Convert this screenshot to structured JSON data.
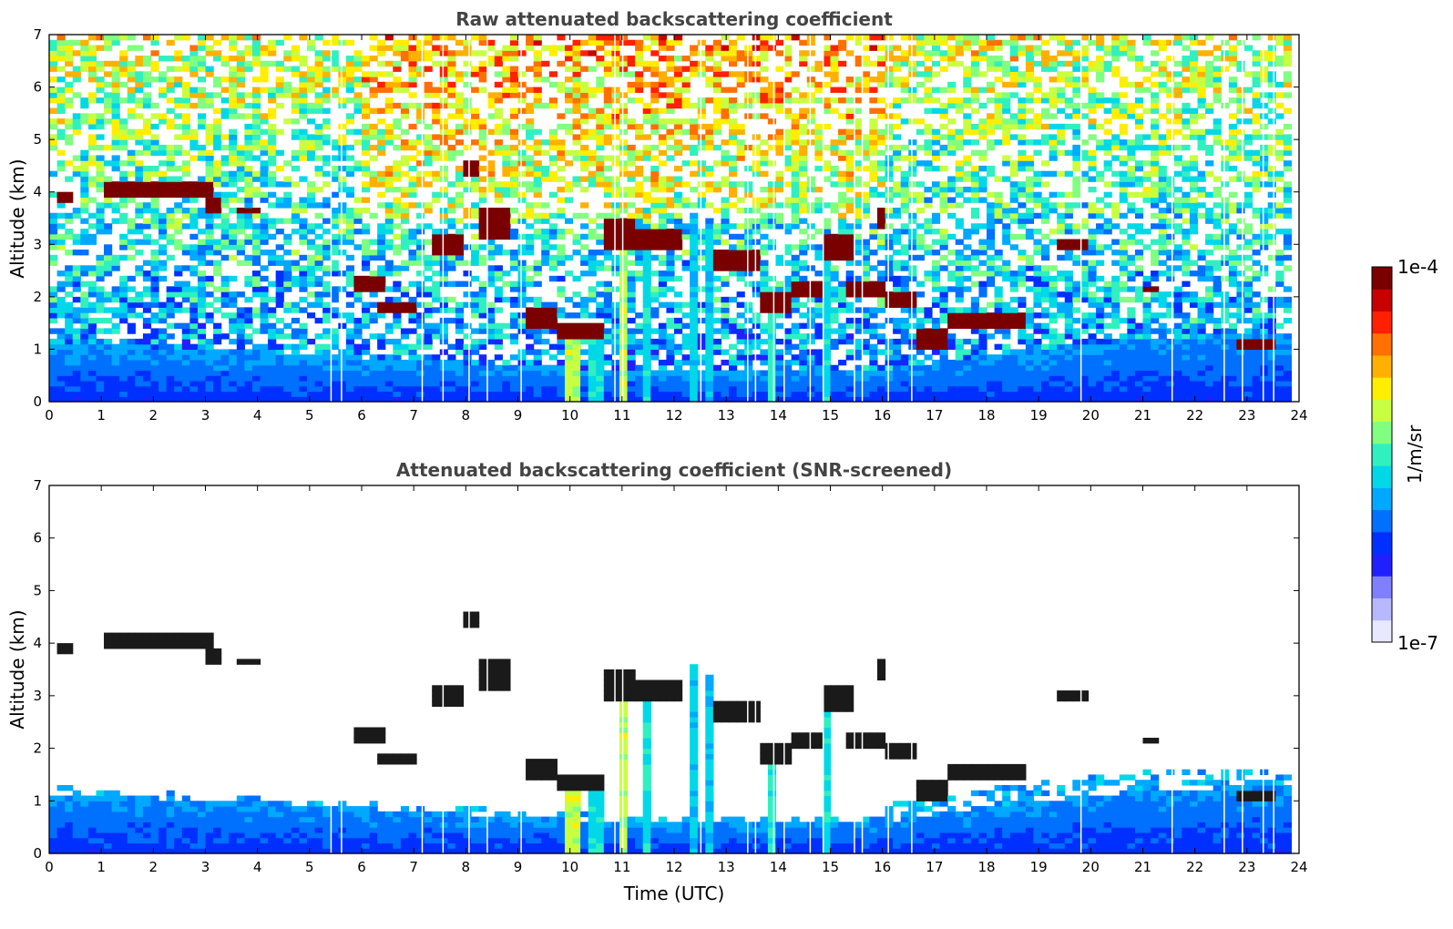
{
  "chart_data": [
    {
      "type": "heatmap",
      "title": "Raw attenuated backscattering coefficient",
      "xlabel": "",
      "ylabel": "Altitude (km)",
      "xlim": [
        0,
        24
      ],
      "ylim": [
        0,
        7
      ],
      "xticks": [
        0,
        1,
        2,
        3,
        4,
        5,
        6,
        7,
        8,
        9,
        10,
        11,
        12,
        13,
        14,
        15,
        16,
        17,
        18,
        19,
        20,
        21,
        22,
        23,
        24
      ],
      "yticks": [
        0,
        1,
        2,
        3,
        4,
        5,
        6,
        7
      ],
      "screened": false,
      "boundary_layer_top_km": [
        [
          0,
          1.15
        ],
        [
          4,
          0.95
        ],
        [
          8,
          0.75
        ],
        [
          12,
          0.55
        ],
        [
          16,
          0.6
        ],
        [
          18,
          0.9
        ],
        [
          21,
          1.2
        ],
        [
          23.8,
          1.3
        ]
      ],
      "cloud_layers": [
        {
          "t0": 0.2,
          "t1": 0.5,
          "alt": 3.9,
          "th": 0.08
        },
        {
          "t0": 1.0,
          "t1": 3.2,
          "alt": 4.05,
          "th": 0.18
        },
        {
          "t0": 3.0,
          "t1": 3.3,
          "alt": 3.75,
          "th": 0.12
        },
        {
          "t0": 3.6,
          "t1": 4.1,
          "alt": 3.65,
          "th": 0.06
        },
        {
          "t0": 5.8,
          "t1": 6.4,
          "alt": 2.3,
          "th": 0.15
        },
        {
          "t0": 6.3,
          "t1": 7.0,
          "alt": 1.8,
          "th": 0.12
        },
        {
          "t0": 7.3,
          "t1": 8.0,
          "alt": 3.0,
          "th": 0.2
        },
        {
          "t0": 8.0,
          "t1": 8.3,
          "alt": 4.4,
          "th": 0.15
        },
        {
          "t0": 8.3,
          "t1": 8.9,
          "alt": 3.4,
          "th": 0.25
        },
        {
          "t0": 9.2,
          "t1": 9.8,
          "alt": 1.6,
          "th": 0.18
        },
        {
          "t0": 9.8,
          "t1": 10.6,
          "alt": 1.3,
          "th": 0.15
        },
        {
          "t0": 10.6,
          "t1": 11.2,
          "alt": 3.2,
          "th": 0.3
        },
        {
          "t0": 11.3,
          "t1": 12.2,
          "alt": 3.1,
          "th": 0.2
        },
        {
          "t0": 12.8,
          "t1": 13.6,
          "alt": 2.7,
          "th": 0.2
        },
        {
          "t0": 13.6,
          "t1": 14.3,
          "alt": 1.9,
          "th": 0.2
        },
        {
          "t0": 14.3,
          "t1": 14.8,
          "alt": 2.1,
          "th": 0.15
        },
        {
          "t0": 14.8,
          "t1": 15.4,
          "alt": 2.95,
          "th": 0.25
        },
        {
          "t0": 15.3,
          "t1": 16.0,
          "alt": 2.1,
          "th": 0.15
        },
        {
          "t0": 15.9,
          "t1": 16.1,
          "alt": 3.5,
          "th": 0.15
        },
        {
          "t0": 16.0,
          "t1": 16.6,
          "alt": 1.95,
          "th": 0.1
        },
        {
          "t0": 16.6,
          "t1": 17.3,
          "alt": 1.2,
          "th": 0.2
        },
        {
          "t0": 17.3,
          "t1": 18.7,
          "alt": 1.55,
          "th": 0.15
        },
        {
          "t0": 19.3,
          "t1": 20.0,
          "alt": 3.0,
          "th": 0.1
        },
        {
          "t0": 21.0,
          "t1": 21.3,
          "alt": 2.15,
          "th": 0.05
        },
        {
          "t0": 22.8,
          "t1": 23.6,
          "alt": 1.05,
          "th": 0.1
        }
      ],
      "precip_columns": [
        {
          "t": 10.1,
          "w": 0.3,
          "top": 1.3,
          "level": 0.62
        },
        {
          "t": 10.5,
          "w": 0.15,
          "top": 1.3,
          "level": 0.45
        },
        {
          "t": 10.95,
          "w": 0.1,
          "top": 2.8,
          "level": 0.45
        },
        {
          "t": 11.05,
          "w": 0.12,
          "top": 3.5,
          "level": 0.62
        },
        {
          "t": 11.25,
          "w": 0.08,
          "top": 2.6,
          "level": 0.7
        },
        {
          "t": 11.45,
          "w": 0.08,
          "top": 2.9,
          "level": 0.45
        },
        {
          "t": 11.7,
          "w": 0.1,
          "top": 3.0,
          "level": 0.45
        },
        {
          "t": 12.0,
          "w": 0.1,
          "top": 3.3,
          "level": 0.45
        },
        {
          "t": 12.35,
          "w": 0.15,
          "top": 3.6,
          "level": 0.42
        },
        {
          "t": 12.65,
          "w": 0.1,
          "top": 3.4,
          "level": 0.42
        },
        {
          "t": 13.85,
          "w": 0.07,
          "top": 2.0,
          "level": 0.48
        },
        {
          "t": 14.95,
          "w": 0.07,
          "top": 2.8,
          "level": 0.45
        },
        {
          "t": 15.15,
          "w": 0.1,
          "top": 2.9,
          "level": 0.62
        }
      ],
      "data_gaps_utc": [
        5.4,
        5.6,
        7.15,
        7.55,
        8.05,
        8.4,
        9.05,
        10.85,
        11.0,
        12.5,
        13.4,
        13.55,
        13.9,
        14.1,
        14.6,
        14.85,
        15.45,
        15.6,
        16.1,
        16.55,
        19.8,
        21.55,
        22.55,
        22.9,
        23.3,
        23.5
      ]
    },
    {
      "type": "heatmap",
      "title": "Attenuated backscattering coefficient (SNR-screened)",
      "xlabel": "Time (UTC)",
      "ylabel": "Altitude (km)",
      "xlim": [
        0,
        24
      ],
      "ylim": [
        0,
        7
      ],
      "xticks": [
        0,
        1,
        2,
        3,
        4,
        5,
        6,
        7,
        8,
        9,
        10,
        11,
        12,
        13,
        14,
        15,
        16,
        17,
        18,
        19,
        20,
        21,
        22,
        23,
        24
      ],
      "yticks": [
        0,
        1,
        2,
        3,
        4,
        5,
        6,
        7
      ],
      "screened": true
    }
  ],
  "colorbar": {
    "label": "1/m/sr",
    "max_label": "1e-4",
    "min_label": "1e-7",
    "colors": [
      "#e8e8ff",
      "#b8b8ff",
      "#8080ff",
      "#2020ff",
      "#0030ff",
      "#0070ff",
      "#00a8ff",
      "#00d8e8",
      "#30f0c0",
      "#80ff80",
      "#c8ff40",
      "#ffee00",
      "#ffb000",
      "#ff7000",
      "#ff2000",
      "#c80000",
      "#7a0000"
    ]
  }
}
